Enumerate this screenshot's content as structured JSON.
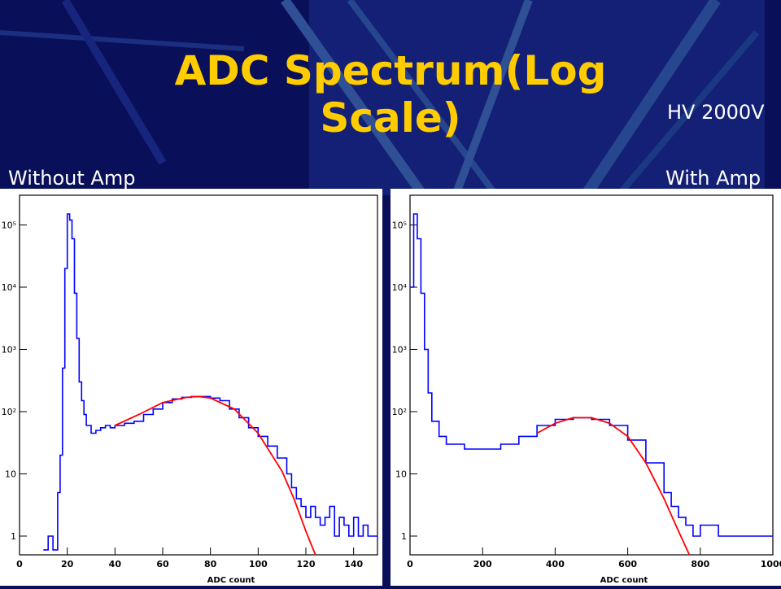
{
  "slide": {
    "title": "ADC Spectrum(Log Scale)",
    "hv_label": "HV 2000V",
    "left_label": "Without Amp",
    "right_label": "With Amp"
  },
  "colors": {
    "background": "#0a0f5a",
    "title": "#ffcc00",
    "histogram": "#0000ff",
    "fit": "#ff0000"
  },
  "chart_data": [
    {
      "type": "line",
      "xlabel": "ADC count",
      "ylabel": "",
      "y_scale": "log",
      "xlim": [
        0,
        150
      ],
      "ylim": [
        0.5,
        300000
      ],
      "x_ticks": [
        0,
        20,
        40,
        60,
        80,
        100,
        120,
        140
      ],
      "y_ticks": [
        {
          "value": 1,
          "label": "1"
        },
        {
          "value": 10,
          "label": "10"
        },
        {
          "value": 100,
          "label": "10²"
        },
        {
          "value": 1000,
          "label": "10³"
        },
        {
          "value": 10000,
          "label": "10⁴"
        },
        {
          "value": 100000,
          "label": "10⁵"
        }
      ],
      "series": [
        {
          "style": "histogram",
          "x": [
            10,
            12,
            14,
            16,
            17,
            18,
            19,
            20,
            21,
            22,
            23,
            24,
            25,
            26,
            27,
            28,
            30,
            32,
            34,
            36,
            38,
            40,
            44,
            48,
            52,
            56,
            60,
            64,
            68,
            72,
            76,
            80,
            84,
            88,
            92,
            96,
            100,
            104,
            108,
            112,
            114,
            116,
            118,
            120,
            122,
            124,
            126,
            128,
            130,
            132,
            134,
            136,
            138,
            140,
            142,
            144,
            146,
            148
          ],
          "y": [
            0.6,
            1,
            0.6,
            5,
            20,
            500,
            20000,
            150000,
            120000,
            60000,
            8000,
            1500,
            300,
            150,
            90,
            60,
            45,
            50,
            55,
            60,
            55,
            60,
            65,
            70,
            90,
            110,
            140,
            160,
            170,
            175,
            175,
            165,
            150,
            110,
            80,
            55,
            40,
            28,
            18,
            10,
            6,
            4,
            3,
            2,
            3,
            2,
            1.5,
            2,
            3,
            1,
            2,
            1.5,
            1,
            2,
            1,
            1.5,
            1,
            1
          ]
        },
        {
          "style": "fit",
          "x": [
            40,
            50,
            60,
            70,
            75,
            80,
            90,
            100,
            110,
            115,
            120,
            124
          ],
          "y": [
            60,
            90,
            140,
            170,
            175,
            165,
            110,
            45,
            11,
            4,
            1.2,
            0.5
          ]
        }
      ]
    },
    {
      "type": "line",
      "xlabel": "ADC count",
      "ylabel": "",
      "y_scale": "log",
      "xlim": [
        0,
        1000
      ],
      "ylim": [
        0.5,
        300000
      ],
      "x_ticks": [
        0,
        200,
        400,
        600,
        800,
        1000
      ],
      "y_ticks": [
        {
          "value": 1,
          "label": "1"
        },
        {
          "value": 10,
          "label": "10"
        },
        {
          "value": 100,
          "label": "10²"
        },
        {
          "value": 1000,
          "label": "10³"
        },
        {
          "value": 10000,
          "label": "10⁴"
        },
        {
          "value": 100000,
          "label": "10⁵"
        }
      ],
      "series": [
        {
          "style": "histogram",
          "x": [
            0,
            10,
            20,
            30,
            40,
            50,
            60,
            80,
            100,
            150,
            200,
            250,
            300,
            350,
            400,
            450,
            500,
            550,
            600,
            650,
            700,
            720,
            740,
            760,
            780,
            800,
            850,
            900,
            950,
            1000
          ],
          "y": [
            10000,
            150000,
            60000,
            8000,
            1000,
            200,
            70,
            40,
            30,
            25,
            25,
            30,
            40,
            60,
            75,
            80,
            75,
            60,
            35,
            15,
            5,
            3,
            2,
            1.5,
            1,
            1.5,
            1,
            1,
            1,
            1
          ]
        },
        {
          "style": "fit",
          "x": [
            350,
            400,
            450,
            500,
            550,
            600,
            650,
            700,
            740,
            770
          ],
          "y": [
            45,
            65,
            80,
            80,
            65,
            40,
            15,
            4,
            1.2,
            0.5
          ]
        }
      ]
    }
  ]
}
